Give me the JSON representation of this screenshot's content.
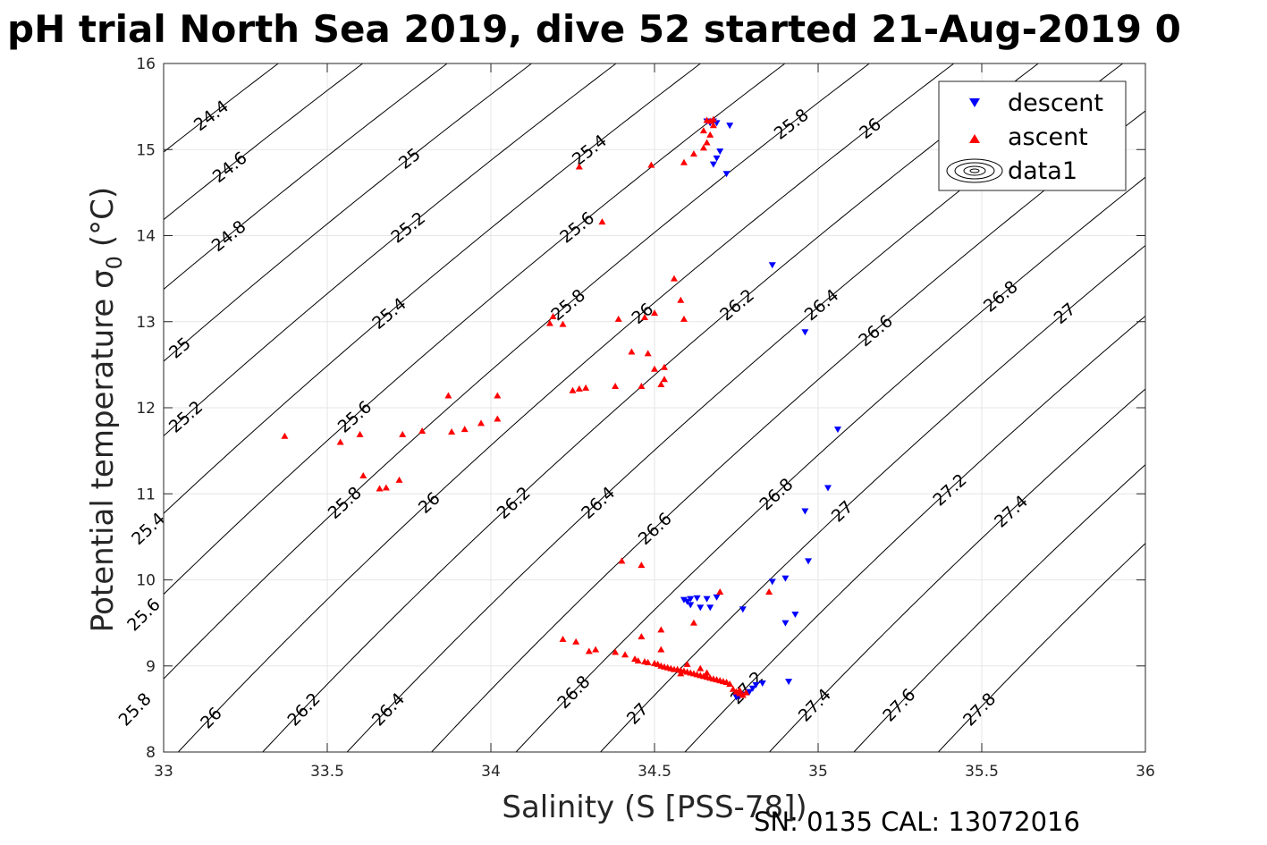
{
  "chart_data": {
    "type": "scatter",
    "title": "pH trial North Sea 2019, dive 52 started 21-Aug-2019 0",
    "xlabel": "Salinity (S [PSS-78])",
    "ylabel": "Potential temperature σ",
    "ylabel_sub": "0",
    "ylabel_unit": "(°C)",
    "footnote": "SN: 0135  CAL: 13072016",
    "xlim": [
      33,
      36
    ],
    "ylim": [
      8,
      16
    ],
    "xticks": [
      33,
      33.5,
      34,
      34.5,
      35,
      35.5,
      36
    ],
    "xtick_labels": [
      "33",
      "33.5",
      "34",
      "34.5",
      "35",
      "35.5",
      "36"
    ],
    "yticks": [
      8,
      9,
      10,
      11,
      12,
      13,
      14,
      15,
      16
    ],
    "ytick_labels": [
      "8",
      "9",
      "10",
      "11",
      "12",
      "13",
      "14",
      "15",
      "16"
    ],
    "grid": true,
    "legend": {
      "position": "top-right",
      "entries": [
        "descent",
        "ascent",
        "data1"
      ]
    },
    "contours": {
      "levels": [
        24.4,
        24.6,
        24.8,
        25,
        25.2,
        25.4,
        25.6,
        25.8,
        26,
        26.2,
        26.4,
        26.6,
        26.8,
        27,
        27.2,
        27.4,
        27.6,
        27.8
      ],
      "label_positions": [
        {
          "text": "24.4",
          "x": 33.1,
          "y": 15.4
        },
        {
          "text": "24.6",
          "x": 33.15,
          "y": 14.8
        },
        {
          "text": "24.8",
          "x": 33.2,
          "y": 14.0
        },
        {
          "text": "25",
          "x": 33.11,
          "y": 12.7
        },
        {
          "text": "25.2",
          "x": 33.18,
          "y": 11.9
        },
        {
          "text": "25.4",
          "x": 33.12,
          "y": 10.6
        },
        {
          "text": "25.6",
          "x": 33.18,
          "y": 9.6
        },
        {
          "text": "25.8",
          "x": 33.22,
          "y": 8.5
        },
        {
          "text": "25",
          "x": 33.69,
          "y": 14.9
        },
        {
          "text": "25.2",
          "x": 33.75,
          "y": 14.1
        },
        {
          "text": "25.4",
          "x": 33.67,
          "y": 13.1
        },
        {
          "text": "25.6",
          "x": 33.75,
          "y": 11.9
        },
        {
          "text": "25.8",
          "x": 33.73,
          "y": 10.9
        },
        {
          "text": "26",
          "x": 33.47,
          "y": 8.4
        },
        {
          "text": "26",
          "x": 33.97,
          "y": 10.9
        },
        {
          "text": "26.2",
          "x": 33.7,
          "y": 8.5
        },
        {
          "text": "26.4",
          "x": 33.97,
          "y": 8.5
        },
        {
          "text": "25.4",
          "x": 34.25,
          "y": 15.0
        },
        {
          "text": "25.6",
          "x": 34.25,
          "y": 14.1
        },
        {
          "text": "25.8",
          "x": 34.27,
          "y": 13.2
        },
        {
          "text": "26",
          "x": 34.52,
          "y": 13.1
        },
        {
          "text": "26.2",
          "x": 34.25,
          "y": 10.9
        },
        {
          "text": "26.4",
          "x": 34.5,
          "y": 10.9
        },
        {
          "text": "26.6",
          "x": 34.7,
          "y": 10.6
        },
        {
          "text": "26.8",
          "x": 34.52,
          "y": 8.7
        },
        {
          "text": "27",
          "x": 34.72,
          "y": 8.45
        },
        {
          "text": "25.8",
          "x": 34.87,
          "y": 15.3
        },
        {
          "text": "26",
          "x": 35.12,
          "y": 15.25
        },
        {
          "text": "26.2",
          "x": 34.8,
          "y": 13.2
        },
        {
          "text": "26.4",
          "x": 35.05,
          "y": 13.2
        },
        {
          "text": "26.6",
          "x": 35.27,
          "y": 12.9
        },
        {
          "text": "26.8",
          "x": 35.05,
          "y": 11.0
        },
        {
          "text": "27",
          "x": 35.24,
          "y": 10.8
        },
        {
          "text": "27.2",
          "x": 35.05,
          "y": 8.75
        },
        {
          "text": "27.4",
          "x": 35.27,
          "y": 8.55
        },
        {
          "text": "26.8",
          "x": 35.58,
          "y": 13.3
        },
        {
          "text": "27",
          "x": 35.8,
          "y": 13.1
        },
        {
          "text": "27.2",
          "x": 35.53,
          "y": 11.05
        },
        {
          "text": "27.4",
          "x": 35.8,
          "y": 10.8
        },
        {
          "text": "27.6",
          "x": 35.53,
          "y": 8.55
        },
        {
          "text": "27.8",
          "x": 35.75,
          "y": 8.5
        }
      ]
    },
    "series": [
      {
        "name": "descent",
        "color": "#0000ff",
        "marker": "triangle-down",
        "points": [
          [
            34.66,
            15.33
          ],
          [
            34.68,
            15.33
          ],
          [
            34.67,
            15.31
          ],
          [
            34.69,
            15.31
          ],
          [
            34.73,
            15.28
          ],
          [
            34.7,
            14.98
          ],
          [
            34.69,
            14.9
          ],
          [
            34.68,
            14.83
          ],
          [
            34.72,
            14.72
          ],
          [
            34.86,
            13.66
          ],
          [
            34.96,
            12.88
          ],
          [
            35.06,
            11.75
          ],
          [
            35.03,
            11.07
          ],
          [
            34.96,
            10.8
          ],
          [
            34.97,
            10.22
          ],
          [
            34.9,
            10.02
          ],
          [
            34.86,
            9.98
          ],
          [
            34.93,
            9.6
          ],
          [
            34.9,
            9.5
          ],
          [
            34.77,
            9.66
          ],
          [
            34.59,
            9.77
          ],
          [
            34.6,
            9.75
          ],
          [
            34.61,
            9.78
          ],
          [
            34.63,
            9.79
          ],
          [
            34.66,
            9.78
          ],
          [
            34.69,
            9.8
          ],
          [
            34.61,
            9.71
          ],
          [
            34.64,
            9.68
          ],
          [
            34.67,
            9.68
          ],
          [
            34.91,
            8.82
          ],
          [
            34.83,
            8.8
          ],
          [
            34.81,
            8.78
          ],
          [
            34.8,
            8.74
          ],
          [
            34.79,
            8.7
          ],
          [
            34.77,
            8.67
          ],
          [
            34.76,
            8.65
          ],
          [
            34.75,
            8.64
          ]
        ]
      },
      {
        "name": "ascent",
        "color": "#ff0000",
        "marker": "triangle-up",
        "points": [
          [
            34.66,
            15.34
          ],
          [
            34.68,
            15.35
          ],
          [
            34.67,
            15.33
          ],
          [
            34.68,
            15.28
          ],
          [
            34.65,
            15.22
          ],
          [
            34.67,
            15.17
          ],
          [
            34.66,
            15.08
          ],
          [
            34.65,
            15.02
          ],
          [
            34.62,
            14.95
          ],
          [
            34.59,
            14.85
          ],
          [
            34.49,
            14.82
          ],
          [
            34.27,
            14.8
          ],
          [
            34.34,
            14.16
          ],
          [
            34.56,
            13.5
          ],
          [
            34.58,
            13.25
          ],
          [
            34.47,
            13.05
          ],
          [
            34.5,
            13.1
          ],
          [
            34.59,
            13.03
          ],
          [
            34.39,
            13.03
          ],
          [
            34.18,
            12.98
          ],
          [
            34.19,
            13.06
          ],
          [
            34.22,
            12.97
          ],
          [
            34.43,
            12.65
          ],
          [
            34.48,
            12.63
          ],
          [
            34.5,
            12.45
          ],
          [
            34.53,
            12.47
          ],
          [
            34.53,
            12.33
          ],
          [
            34.52,
            12.27
          ],
          [
            34.46,
            12.25
          ],
          [
            34.38,
            12.25
          ],
          [
            34.25,
            12.2
          ],
          [
            34.27,
            12.22
          ],
          [
            34.29,
            12.23
          ],
          [
            33.87,
            12.14
          ],
          [
            34.02,
            12.14
          ],
          [
            34.02,
            11.87
          ],
          [
            33.97,
            11.82
          ],
          [
            33.92,
            11.75
          ],
          [
            33.88,
            11.72
          ],
          [
            33.79,
            11.73
          ],
          [
            33.73,
            11.69
          ],
          [
            33.6,
            11.69
          ],
          [
            33.54,
            11.6
          ],
          [
            33.37,
            11.67
          ],
          [
            33.61,
            11.21
          ],
          [
            33.72,
            11.16
          ],
          [
            33.68,
            11.07
          ],
          [
            33.66,
            11.06
          ],
          [
            34.4,
            10.22
          ],
          [
            34.46,
            10.17
          ],
          [
            34.7,
            9.86
          ],
          [
            34.85,
            9.86
          ],
          [
            34.62,
            9.5
          ],
          [
            34.52,
            9.42
          ],
          [
            34.46,
            9.34
          ],
          [
            34.52,
            9.19
          ],
          [
            34.22,
            9.31
          ],
          [
            34.26,
            9.28
          ],
          [
            34.3,
            9.17
          ],
          [
            34.32,
            9.19
          ],
          [
            34.38,
            9.16
          ],
          [
            34.41,
            9.13
          ],
          [
            34.44,
            9.08
          ],
          [
            34.45,
            9.06
          ],
          [
            34.47,
            9.05
          ],
          [
            34.48,
            9.04
          ],
          [
            34.5,
            9.03
          ],
          [
            34.51,
            9.02
          ],
          [
            34.52,
            9.0
          ],
          [
            34.53,
            8.99
          ],
          [
            34.54,
            8.98
          ],
          [
            34.55,
            8.97
          ],
          [
            34.56,
            8.96
          ],
          [
            34.57,
            8.96
          ],
          [
            34.58,
            8.95
          ],
          [
            34.59,
            8.94
          ],
          [
            34.6,
            8.93
          ],
          [
            34.61,
            8.92
          ],
          [
            34.62,
            8.91
          ],
          [
            34.63,
            8.9
          ],
          [
            34.64,
            8.89
          ],
          [
            34.65,
            8.88
          ],
          [
            34.66,
            8.87
          ],
          [
            34.67,
            8.86
          ],
          [
            34.68,
            8.85
          ],
          [
            34.69,
            8.84
          ],
          [
            34.7,
            8.83
          ],
          [
            34.71,
            8.82
          ],
          [
            34.72,
            8.81
          ],
          [
            34.73,
            8.79
          ],
          [
            34.6,
            9.02
          ],
          [
            34.64,
            8.97
          ],
          [
            34.66,
            8.92
          ],
          [
            34.58,
            8.91
          ],
          [
            34.74,
            8.73
          ],
          [
            34.75,
            8.7
          ],
          [
            34.76,
            8.68
          ],
          [
            34.77,
            8.66
          ],
          [
            34.78,
            8.69
          ],
          [
            34.76,
            8.72
          ]
        ]
      }
    ]
  }
}
